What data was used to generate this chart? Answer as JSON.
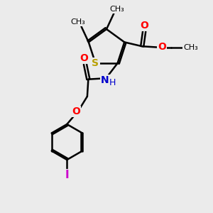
{
  "background_color": "#ebebeb",
  "bond_color": "#000000",
  "sulfur_color": "#b8a000",
  "oxygen_color": "#ff0000",
  "nitrogen_color": "#0000cc",
  "iodine_color": "#cc00cc",
  "bond_width": 1.8,
  "figsize": [
    3.0,
    3.0
  ],
  "dpi": 100,
  "xlim": [
    0,
    10
  ],
  "ylim": [
    0,
    10
  ]
}
